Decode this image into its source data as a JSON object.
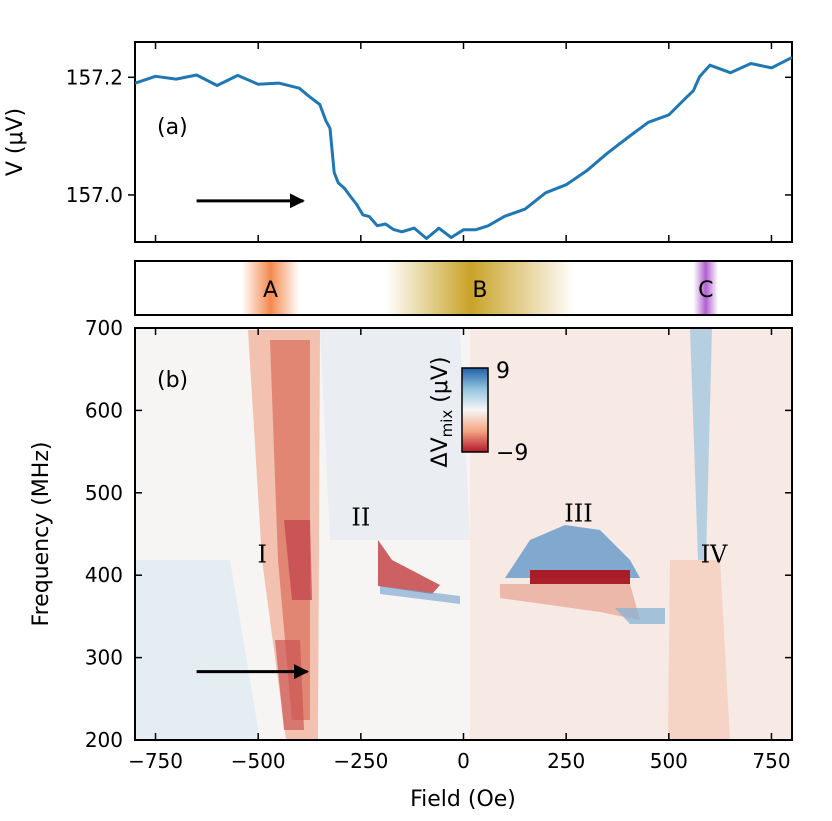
{
  "chart_data": [
    {
      "panel": "(a)",
      "type": "line",
      "ylabel": "V (μV)",
      "xlim": [
        -800,
        800
      ],
      "ylim": [
        156.92,
        157.26
      ],
      "yticks": [
        157.0,
        157.2
      ],
      "ytick_labels": [
        "157.0",
        "157.2"
      ],
      "series_color": "#1f77b4",
      "series": [
        {
          "name": "V",
          "points": [
            [
              -800,
              157.19
            ],
            [
              -750,
              157.2
            ],
            [
              -700,
              157.2
            ],
            [
              -650,
              157.2
            ],
            [
              -600,
              157.19
            ],
            [
              -550,
              157.2
            ],
            [
              -500,
              157.19
            ],
            [
              -450,
              157.19
            ],
            [
              -400,
              157.18
            ],
            [
              -375,
              157.17
            ],
            [
              -350,
              157.15
            ],
            [
              -335,
              157.13
            ],
            [
              -325,
              157.11
            ],
            [
              -315,
              157.04
            ],
            [
              -305,
              157.02
            ],
            [
              -290,
              157.01
            ],
            [
              -275,
              157.0
            ],
            [
              -260,
              156.98
            ],
            [
              -245,
              156.97
            ],
            [
              -230,
              156.96
            ],
            [
              -210,
              156.95
            ],
            [
              -190,
              156.95
            ],
            [
              -170,
              156.94
            ],
            [
              -150,
              156.94
            ],
            [
              -120,
              156.94
            ],
            [
              -90,
              156.93
            ],
            [
              -60,
              156.94
            ],
            [
              -30,
              156.93
            ],
            [
              0,
              156.94
            ],
            [
              30,
              156.94
            ],
            [
              60,
              156.95
            ],
            [
              100,
              156.96
            ],
            [
              150,
              156.98
            ],
            [
              200,
              157.0
            ],
            [
              250,
              157.02
            ],
            [
              300,
              157.04
            ],
            [
              350,
              157.07
            ],
            [
              400,
              157.1
            ],
            [
              450,
              157.12
            ],
            [
              500,
              157.14
            ],
            [
              540,
              157.16
            ],
            [
              560,
              157.18
            ],
            [
              575,
              157.2
            ],
            [
              600,
              157.22
            ],
            [
              650,
              157.21
            ],
            [
              700,
              157.22
            ],
            [
              750,
              157.22
            ],
            [
              800,
              157.23
            ]
          ]
        }
      ],
      "annotation": {
        "type": "arrow",
        "direction": "right",
        "from": [
          -650,
          156.99
        ],
        "to": [
          -390,
          156.99
        ]
      }
    },
    {
      "panel": "regions",
      "type": "band",
      "regions": [
        {
          "label": "A",
          "center": -470,
          "halfwidth": 70,
          "color": "#f4894e"
        },
        {
          "label": "B",
          "center": 40,
          "halfwidth": 230,
          "color": "#c9a227"
        },
        {
          "label": "C",
          "center": 590,
          "halfwidth": 30,
          "color": "#b060d0"
        }
      ]
    },
    {
      "panel": "(b)",
      "type": "heatmap",
      "xlabel": "Field (Oe)",
      "ylabel": "Frequency (MHz)",
      "xlim": [
        -800,
        800
      ],
      "ylim": [
        200,
        700
      ],
      "xticks": [
        -750,
        -500,
        -250,
        0,
        250,
        500,
        750
      ],
      "xtick_labels": [
        "−750",
        "−500",
        "−250",
        "0",
        "250",
        "500",
        "750"
      ],
      "yticks": [
        200,
        300,
        400,
        500,
        600,
        700
      ],
      "ytick_labels": [
        "200",
        "300",
        "400",
        "500",
        "600",
        "700"
      ],
      "colorbar": {
        "label": "ΔV",
        "label_sub": "mix",
        "label_unit": " (μV)",
        "max_label": "9",
        "min_label": "−9",
        "vmin": -9,
        "vmax": 9
      },
      "mode_labels": [
        {
          "text": "I",
          "x": -490,
          "y": 425
        },
        {
          "text": "II",
          "x": -250,
          "y": 470
        },
        {
          "text": "III",
          "x": 280,
          "y": 475
        },
        {
          "text": "IV",
          "x": 610,
          "y": 425
        }
      ],
      "annotation": {
        "type": "arrow",
        "direction": "right",
        "from": [
          -650,
          283
        ],
        "to": [
          -380,
          283
        ]
      }
    }
  ]
}
